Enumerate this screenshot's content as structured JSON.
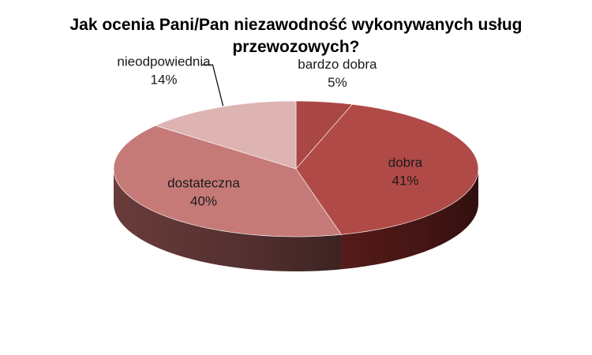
{
  "chart_data": {
    "type": "pie",
    "title": "Jak ocenia Pani/Pan niezawodność wykonywanych usług przewozowych?",
    "categories": [
      "bardzo dobra",
      "dobra",
      "dostateczna",
      "nieodpowiednia"
    ],
    "values": [
      5,
      41,
      40,
      14
    ],
    "value_labels": [
      "5%",
      "41%",
      "40%",
      "14%"
    ],
    "three_d": true,
    "legend": "none",
    "colors": [
      "#a94744",
      "#b04a47",
      "#c67a78",
      "#ddb4b2"
    ],
    "side_colors": [
      "#5e1f1e",
      "#5a1c1b",
      "#6e3f3e",
      "#8c6766"
    ]
  }
}
